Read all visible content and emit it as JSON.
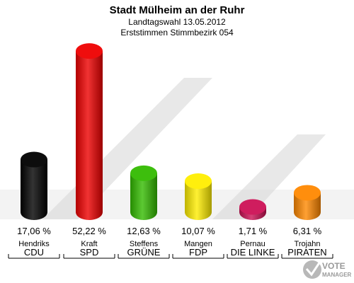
{
  "chart_data": {
    "type": "bar",
    "title": "Stadt Mülheim an der Ruhr",
    "subtitle": "Landtagswahl 13.05.2012",
    "subtitle2": "Erststimmen Stimmbezirk 054",
    "categories": [
      "CDU",
      "SPD",
      "GRÜNE",
      "FDP",
      "DIE LINKE",
      "PIRATEN"
    ],
    "candidates": [
      "Hendriks",
      "Kraft",
      "Steffens",
      "Mangen",
      "Pernau",
      "Trojahn"
    ],
    "values": [
      17.06,
      52.22,
      12.63,
      10.07,
      1.71,
      6.31
    ],
    "value_labels": [
      "17,06 %",
      "52,22 %",
      "12,63 %",
      "10,07 %",
      "1,71 %",
      "6,31 %"
    ],
    "colors": [
      "#000000",
      "#ee0000",
      "#33bb00",
      "#ffee00",
      "#cc1155",
      "#ff8800"
    ],
    "ylim": [
      0,
      55
    ]
  },
  "logo": {
    "line1": "VOTE",
    "line2": "MANAGER"
  }
}
